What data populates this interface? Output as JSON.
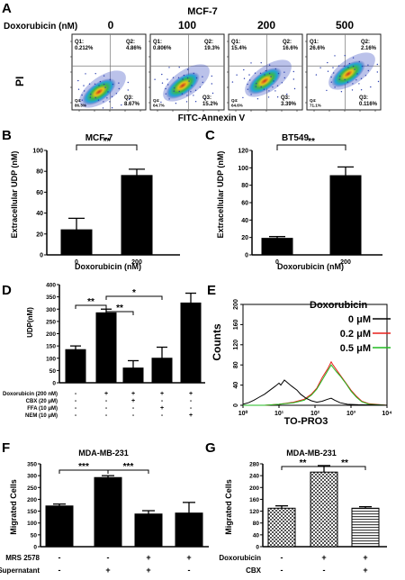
{
  "panelA": {
    "letter": "A",
    "title": "MCF-7",
    "dox_label": "Doxorubicin (nM)",
    "doses": [
      "0",
      "100",
      "200",
      "500"
    ],
    "ylabel": "PI",
    "xlabel": "FITC-Annexin V",
    "plots": [
      {
        "q1": "Q1:\n0.212%",
        "q2": "Q2:\n4.86%",
        "q3": "Q3:\n8.67%",
        "q4": "Q4:\n86.3%"
      },
      {
        "q1": "Q1:\n0.806%",
        "q2": "Q2:\n19.3%",
        "q3": "Q3:\n15.2%",
        "q4": "Q4:\n64.7%"
      },
      {
        "q1": "Q1:\n15.4%",
        "q2": "Q2:\n16.6%",
        "q3": "Q3:\n3.39%",
        "q4": "Q4:\n64.6%"
      },
      {
        "q1": "Q1:\n26.6%",
        "q2": "Q2:\n2.16%",
        "q3": "Q3:\n0.116%",
        "q4": "Q4:\n71.1%"
      }
    ]
  },
  "panelB": {
    "letter": "B",
    "title": "MCF-7",
    "sig": "**",
    "ylabel": "Extracellular UDP (nM)",
    "xlabel": "Doxorubicin (nM)"
  },
  "panelC": {
    "letter": "C",
    "title": "BT549",
    "sig": "**",
    "ylabel": "Extracellular UDP (nM)",
    "xlabel": "Doxorubicin (nM)"
  },
  "panelD": {
    "letter": "D",
    "ylabel": "UDP(nM)",
    "sig1": "**",
    "sig2": "*",
    "sig3": "**",
    "rows": [
      {
        "label": "Doxorubicin (200 nM)",
        "signs": [
          "-",
          "+",
          "+",
          "+",
          "+"
        ]
      },
      {
        "label": "CBX (20 μM)",
        "signs": [
          "-",
          "-",
          "+",
          "-",
          "-"
        ]
      },
      {
        "label": "FFA (10 μM)",
        "signs": [
          "-",
          "-",
          "-",
          "+",
          "-"
        ]
      },
      {
        "label": "NEM (10 μM)",
        "signs": [
          "-",
          "-",
          "-",
          "-",
          "+"
        ]
      }
    ]
  },
  "panelE": {
    "letter": "E",
    "ylabel": "Counts",
    "xlabel": "TO-PRO3",
    "legend_title": "Doxorubicin",
    "series": [
      {
        "name": "0 μM",
        "color": "#000000"
      },
      {
        "name": "0.2 μM",
        "color": "#e8201c"
      },
      {
        "name": "0.5 μM",
        "color": "#22bb22"
      }
    ],
    "yticks": [
      "0",
      "40",
      "80",
      "120",
      "160",
      "200"
    ],
    "xticks": [
      "10⁰",
      "10¹",
      "10²",
      "10³",
      "10⁴"
    ]
  },
  "panelF": {
    "letter": "F",
    "title": "MDA-MB-231",
    "ylabel": "Migrated Cells",
    "sig1": "***",
    "sig2": "***",
    "rows": [
      {
        "label": "MRS 2578",
        "signs": [
          "-",
          "-",
          "+",
          "+"
        ]
      },
      {
        "label": "Supernatant",
        "signs": [
          "-",
          "+",
          "+",
          "-"
        ]
      }
    ]
  },
  "panelG": {
    "letter": "G",
    "title": "MDA-MB-231",
    "ylabel": "Migrated Cells",
    "sig1": "**",
    "sig2": "**",
    "rows": [
      {
        "label": "Doxorubicin",
        "signs": [
          "-",
          "+",
          "+"
        ]
      },
      {
        "label": "CBX",
        "signs": [
          "-",
          "-",
          "+"
        ]
      }
    ]
  },
  "chart_data": [
    {
      "type": "bar",
      "title": "MCF-7",
      "xlabel": "Doxorubicin (nM)",
      "ylabel": "Extracellular UDP (nM)",
      "categories": [
        "0",
        "200"
      ],
      "values": [
        24,
        76
      ],
      "errors": [
        11,
        6
      ],
      "ylim": [
        0,
        100
      ],
      "yticks": [
        0,
        20,
        40,
        60,
        80,
        100
      ]
    },
    {
      "type": "bar",
      "title": "BT549",
      "xlabel": "Doxorubicin (nM)",
      "ylabel": "Extracellular UDP (nM)",
      "categories": [
        "0",
        "200"
      ],
      "values": [
        19,
        91
      ],
      "errors": [
        2,
        10
      ],
      "ylim": [
        0,
        120
      ],
      "yticks": [
        0,
        20,
        40,
        60,
        80,
        100,
        120
      ]
    },
    {
      "type": "bar",
      "ylabel": "UDP(nM)",
      "categories": [
        "1",
        "2",
        "3",
        "4",
        "5"
      ],
      "values": [
        135,
        285,
        60,
        100,
        325
      ],
      "errors": [
        15,
        15,
        30,
        45,
        40
      ],
      "ylim": [
        0,
        400
      ],
      "yticks": [
        0,
        50,
        100,
        150,
        200,
        250,
        300,
        350,
        400
      ]
    },
    {
      "type": "bar",
      "title": "MDA-MB-231",
      "ylabel": "Migrated Cells",
      "categories": [
        "1",
        "2",
        "3",
        "4"
      ],
      "values": [
        172,
        292,
        138,
        142
      ],
      "errors": [
        8,
        8,
        14,
        45
      ],
      "ylim": [
        0,
        350
      ],
      "yticks": [
        0,
        50,
        100,
        150,
        200,
        250,
        300,
        350
      ]
    },
    {
      "type": "bar",
      "title": "MDA-MB-231",
      "ylabel": "Migrated Cells",
      "categories": [
        "1",
        "2",
        "3"
      ],
      "values": [
        130,
        252,
        130
      ],
      "errors": [
        8,
        22,
        5
      ],
      "ylim": [
        0,
        280
      ],
      "yticks": [
        0,
        40,
        80,
        120,
        160,
        200,
        240,
        280
      ]
    }
  ]
}
